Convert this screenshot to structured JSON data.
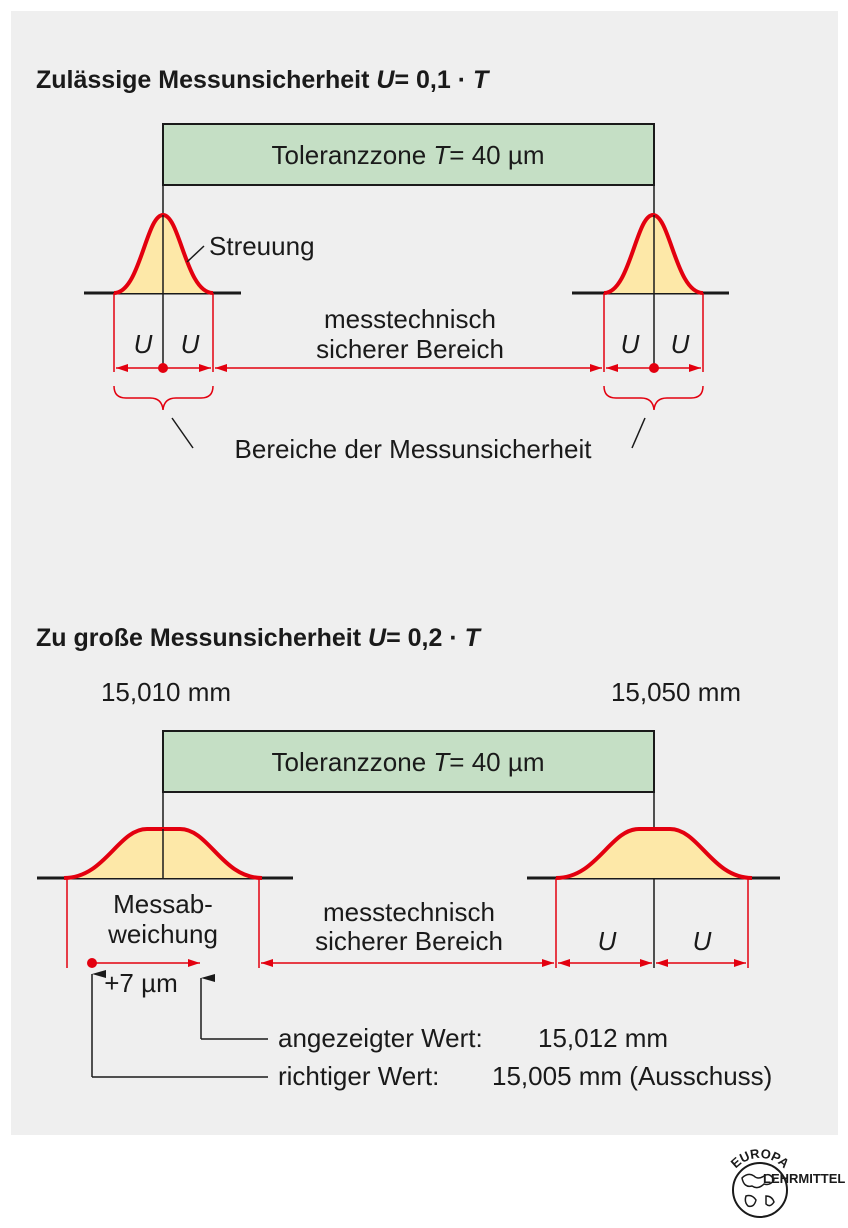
{
  "section1": {
    "title_text": "Zulässige Messunsicherheit ",
    "title_var": "U",
    "title_eq": "= 0,1 · ",
    "title_T": "T",
    "zone_text": "Toleranzzone ",
    "zone_var": "T",
    "zone_val": "= 40 µm",
    "streuung": "Streuung",
    "u": "U",
    "safe_line1": "messtechnisch",
    "safe_line2": "sicherer Bereich",
    "uncertainty_label": "Bereiche der Messunsicherheit"
  },
  "section2": {
    "title_text": "Zu große Messunsicherheit ",
    "title_var": "U",
    "title_eq": "= 0,2 · ",
    "title_T": "T",
    "lower_limit": "15,010 mm",
    "upper_limit": "15,050 mm",
    "zone_text": "Toleranzzone ",
    "zone_var": "T",
    "zone_val": "= 40 µm",
    "dev_line1": "Messab-",
    "dev_line2": "weichung",
    "deviation": "+7 µm",
    "safe_line1": "messtechnisch",
    "safe_line2": "sicherer Bereich",
    "u": "U",
    "indicated_label": "angezeigter Wert:",
    "indicated_value": "15,012 mm",
    "true_label": "richtiger Wert:",
    "true_value": "15,005 mm (Ausschuss)"
  },
  "logo": {
    "top_text": "EUROPA",
    "bottom_text": "LEHRMITTEL"
  },
  "colors": {
    "zone_fill": "#c5dfc5",
    "curve_stroke": "#e3000f",
    "curve_fill": "#fde8a8",
    "panel": "#efefef"
  }
}
